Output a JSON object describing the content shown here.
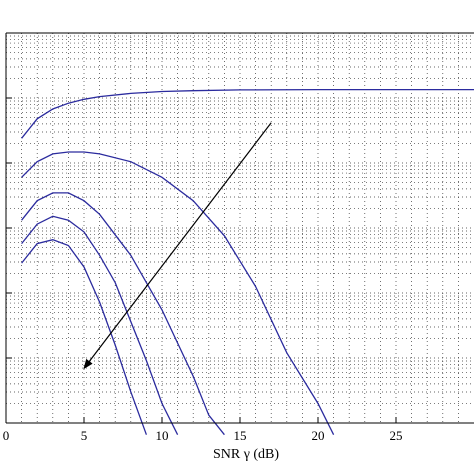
{
  "chart_data": {
    "type": "line",
    "title": "",
    "xlabel": "SNR γ (dB)",
    "ylabel": "",
    "xlim": [
      0,
      30
    ],
    "xticks": [
      0,
      5,
      10,
      15,
      20,
      25
    ],
    "y_scale": "log",
    "y_decades": 6,
    "grid": true,
    "grid_style": "dotted",
    "line_color": "#2b2b9e",
    "arrow": {
      "from": [
        17,
        0.77
      ],
      "to": [
        5,
        0.14
      ],
      "direction": "down-left"
    },
    "series": [
      {
        "x": [
          1,
          2,
          3,
          4,
          5,
          6,
          8,
          10,
          12,
          15,
          20,
          25,
          30
        ],
        "y": [
          0.73,
          0.78,
          0.805,
          0.82,
          0.83,
          0.837,
          0.845,
          0.85,
          0.852,
          0.854,
          0.855,
          0.855,
          0.855
        ]
      },
      {
        "x": [
          1,
          2,
          3,
          4,
          5,
          6,
          8,
          10,
          12,
          14,
          16,
          18,
          20,
          21
        ],
        "y": [
          0.63,
          0.67,
          0.69,
          0.695,
          0.695,
          0.69,
          0.67,
          0.63,
          0.57,
          0.48,
          0.35,
          0.18,
          0.05,
          -0.03
        ]
      },
      {
        "x": [
          1,
          2,
          3,
          4,
          5,
          6,
          8,
          10,
          12,
          13,
          14
        ],
        "y": [
          0.52,
          0.57,
          0.59,
          0.59,
          0.57,
          0.535,
          0.43,
          0.29,
          0.12,
          0.02,
          -0.03
        ]
      },
      {
        "x": [
          1,
          2,
          3,
          4,
          5,
          6,
          7,
          8,
          9,
          10,
          11
        ],
        "y": [
          0.46,
          0.51,
          0.53,
          0.52,
          0.49,
          0.43,
          0.36,
          0.26,
          0.16,
          0.05,
          -0.03
        ]
      },
      {
        "x": [
          1,
          2,
          3,
          4,
          5,
          6,
          7,
          8,
          9
        ],
        "y": [
          0.41,
          0.46,
          0.47,
          0.455,
          0.4,
          0.31,
          0.2,
          0.08,
          -0.03
        ]
      }
    ]
  }
}
